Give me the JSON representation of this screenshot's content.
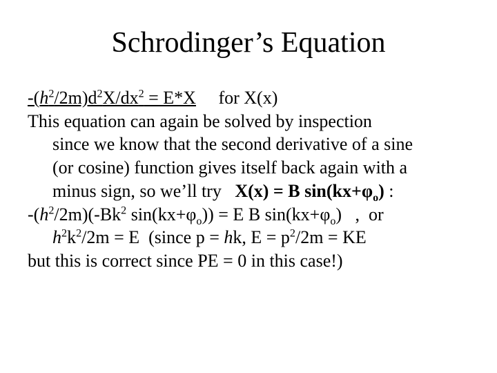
{
  "title": "Schrodinger’s Equation",
  "typography": {
    "title_fontsize": 42,
    "body_fontsize": 26,
    "font_family": "Times New Roman",
    "text_color": "#000000",
    "background_color": "#ffffff"
  },
  "lines": {
    "l1a": "-(",
    "l1b": "/2m)d",
    "l1c": "X/dx",
    "l1d": " = E*X",
    "l1e": "     for X(x)",
    "l2": "This equation can again be solved by inspection",
    "l3": "since we know that the second derivative of a sine",
    "l4": "(or cosine) function gives itself back again with a",
    "l5a": "minus sign, so we’ll try   ",
    "l5b": "X(x) = B sin(kx+φ",
    "l5c": ")",
    "l5d": " :",
    "l6a": "-(",
    "l6b": "/2m)(-Bk",
    "l6c": " sin(kx+φ",
    "l6d": ")) = E B sin(kx+φ",
    "l6e": ")   ,  or",
    "l7a": "k",
    "l7b": "/2m = E  (since p = ",
    "l7c": "k,  E = p",
    "l7d": "/2m = KE",
    "l8": "but this is correct since PE = 0 in this case!)",
    "sup2": "2",
    "subo": "o",
    "hbar": "h"
  }
}
